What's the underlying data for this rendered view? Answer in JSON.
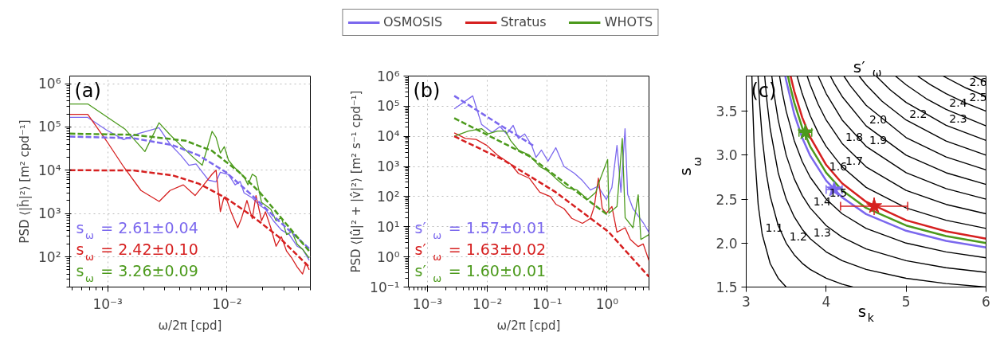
{
  "chart_data": [
    {
      "type": "line",
      "title": "(a)",
      "xlabel": "ω/2π [cpd]",
      "ylabel": "PSD ⟨|ĥ|²⟩ [m² cpd⁻¹]",
      "log": "xy",
      "grid": true,
      "xlim": [
        0.00048,
        0.05
      ],
      "ylim": [
        20,
        1500000
      ],
      "xticks": [
        {
          "value": 0.001,
          "label": "10⁻³"
        },
        {
          "value": 0.01,
          "label": "10⁻²"
        }
      ],
      "yticks": [
        {
          "value": 100,
          "label": "10²"
        },
        {
          "value": 1000,
          "label": "10³"
        },
        {
          "value": 10000,
          "label": "10⁴"
        },
        {
          "value": 100000,
          "label": "10⁵"
        },
        {
          "value": 1000000,
          "label": "10⁶"
        }
      ],
      "annotations": [
        "s$_{ω}$ = 2.61±0.04",
        "s$_{ω}$ = 2.42±0.10",
        "s$_{ω}$ = 3.26±0.09"
      ],
      "series": [
        {
          "color": "#7b68ee",
          "x": [
            0.00048,
            0.00068,
            0.000975,
            0.00136,
            0.0018,
            0.00269,
            0.00333,
            0.0041,
            0.0048,
            0.0055,
            0.0063,
            0.007,
            0.0081,
            0.0088,
            0.0103,
            0.0117,
            0.0129,
            0.0139,
            0.0163,
            0.0185,
            0.021,
            0.0245,
            0.0286,
            0.0333,
            0.0388,
            0.043,
            0.0489
          ],
          "values": [
            166000,
            166000,
            85000,
            51000,
            70000,
            96000,
            40000,
            22000,
            13000,
            14000,
            8600,
            5900,
            5400,
            9000,
            8000,
            4600,
            5500,
            3000,
            2300,
            1600,
            1260,
            680,
            415,
            325,
            175,
            150,
            83
          ]
        },
        {
          "color": "#d62020",
          "x": [
            0.00048,
            0.00068,
            0.000975,
            0.00136,
            0.0019,
            0.0027,
            0.00333,
            0.0043,
            0.0054,
            0.0065,
            0.0075,
            0.0081,
            0.0088,
            0.0094,
            0.01,
            0.0108,
            0.0123,
            0.0132,
            0.0147,
            0.0163,
            0.0175,
            0.0195,
            0.021,
            0.0233,
            0.0258,
            0.0286,
            0.0316,
            0.035,
            0.0388,
            0.043,
            0.046,
            0.0489
          ],
          "values": [
            195000,
            195000,
            48000,
            12000,
            3400,
            1900,
            3400,
            4600,
            2600,
            4900,
            8100,
            10000,
            1100,
            2300,
            2000,
            1100,
            470,
            760,
            2000,
            760,
            2600,
            680,
            1100,
            470,
            175,
            290,
            135,
            93,
            58,
            40,
            72,
            50
          ]
        },
        {
          "color": "#4c9a1c",
          "x": [
            0.00048,
            0.00068,
            0.00139,
            0.00205,
            0.00269,
            0.00333,
            0.0043,
            0.0053,
            0.0062,
            0.0075,
            0.0081,
            0.0088,
            0.0095,
            0.0103,
            0.0114,
            0.0139,
            0.015,
            0.0163,
            0.0175,
            0.0195,
            0.0233,
            0.0258,
            0.0286,
            0.0316,
            0.035,
            0.0388,
            0.043,
            0.0489
          ],
          "values": [
            340000,
            340000,
            90000,
            27000,
            125000,
            66000,
            33000,
            19000,
            13000,
            79000,
            57000,
            25000,
            35000,
            17000,
            12000,
            7100,
            4600,
            8100,
            7100,
            1800,
            1260,
            680,
            800,
            325,
            380,
            195,
            150,
            93
          ]
        },
        {
          "color": "#7b68ee",
          "line_style": "dashed",
          "x": [
            0.00048,
            0.00163,
            0.0035,
            0.0058,
            0.00975,
            0.0163,
            0.0271,
            0.0489
          ],
          "values": [
            60000,
            55000,
            38000,
            22000,
            9100,
            2600,
            680,
            155
          ]
        },
        {
          "color": "#d62020",
          "line_style": "dashed",
          "x": [
            0.00048,
            0.00163,
            0.0035,
            0.0058,
            0.00975,
            0.0163,
            0.0271,
            0.0489
          ],
          "values": [
            10000,
            9900,
            7600,
            4900,
            2300,
            870,
            290,
            58
          ]
        },
        {
          "color": "#4c9a1c",
          "line_style": "dashed",
          "x": [
            0.00048,
            0.00163,
            0.0045,
            0.0075,
            0.0126,
            0.019,
            0.0286,
            0.0489
          ],
          "values": [
            70000,
            66000,
            48000,
            28000,
            9100,
            3000,
            780,
            135
          ]
        }
      ]
    },
    {
      "type": "line",
      "title": "(b)",
      "xlabel": "ω/2π [cpd]",
      "ylabel": "PSD ⟨|û|² + |v̂|²⟩ [m² s⁻¹ cpd⁻¹]",
      "log": "xy",
      "grid": true,
      "legend": "top",
      "xlim": [
        0.00048,
        5
      ],
      "ylim": [
        0.1,
        1000000
      ],
      "xticks": [
        {
          "value": 0.001,
          "label": "10⁻³"
        },
        {
          "value": 0.01,
          "label": "10⁻²"
        },
        {
          "value": 0.1,
          "label": "10⁻¹"
        },
        {
          "value": 1,
          "label": "10⁰"
        }
      ],
      "yticks": [
        {
          "value": 0.1,
          "label": "10⁻¹"
        },
        {
          "value": 1,
          "label": "10⁰"
        },
        {
          "value": 10,
          "label": "10¹"
        },
        {
          "value": 100,
          "label": "10²"
        },
        {
          "value": 1000,
          "label": "10³"
        },
        {
          "value": 10000,
          "label": "10⁴"
        },
        {
          "value": 100000,
          "label": "10⁵"
        },
        {
          "value": 1000000,
          "label": "10⁶"
        }
      ],
      "annotations": [
        "s′$_{ω}$ = 1.57±0.01",
        "s′$_{ω}$ = 1.63±0.02",
        "s′$_{ω}$ = 1.60±0.01"
      ],
      "series": [
        {
          "name": "OSMOSIS",
          "color": "#7b68ee",
          "x": [
            0.0028,
            0.0057,
            0.008,
            0.012,
            0.0163,
            0.021,
            0.027,
            0.033,
            0.042,
            0.055,
            0.065,
            0.08,
            0.103,
            0.139,
            0.19,
            0.285,
            0.387,
            0.526,
            0.7,
            0.97,
            1.2,
            1.46,
            1.7,
            1.99,
            2.2,
            2.7,
            3.3,
            4.06,
            4.98
          ],
          "values": [
            81000,
            220000,
            25000,
            13500,
            21000,
            12000,
            23000,
            8500,
            12000,
            5000,
            2000,
            3500,
            1500,
            4200,
            1000,
            590,
            340,
            165,
            220,
            81,
            200,
            5000,
            140,
            18000,
            120,
            40,
            23,
            13,
            6.6
          ]
        },
        {
          "name": "Stratus",
          "color": "#d62020",
          "x": [
            0.0028,
            0.0043,
            0.0065,
            0.0098,
            0.0147,
            0.0245,
            0.033,
            0.05,
            0.075,
            0.113,
            0.139,
            0.19,
            0.257,
            0.387,
            0.526,
            0.61,
            0.714,
            0.83,
            0.97,
            1.2,
            1.46,
            2.0,
            2.44,
            3.3,
            4.0,
            4.98
          ],
          "values": [
            13000,
            8500,
            7900,
            5000,
            2400,
            1200,
            590,
            410,
            140,
            100,
            56,
            40,
            19,
            13,
            19,
            47,
            410,
            40,
            28,
            47,
            6.6,
            9.3,
            3.8,
            2.2,
            2.7,
            0.76
          ]
        },
        {
          "name": "WHOTS",
          "color": "#4c9a1c",
          "x": [
            0.0028,
            0.0048,
            0.008,
            0.0103,
            0.0147,
            0.02,
            0.0245,
            0.033,
            0.05,
            0.075,
            0.103,
            0.139,
            0.21,
            0.316,
            0.474,
            0.646,
            0.75,
            1.02,
            1.07,
            1.46,
            1.79,
            2.0,
            2.7,
            3.3,
            3.66,
            4.98
          ],
          "values": [
            10000,
            15000,
            18000,
            12000,
            15000,
            15000,
            7200,
            3500,
            2400,
            1000,
            700,
            400,
            200,
            165,
            81,
            140,
            340,
            1700,
            28,
            47,
            8500,
            20,
            9.3,
            115,
            3.8,
            5.5
          ]
        },
        {
          "color": "#7b68ee",
          "line_style": "dashed",
          "x": [
            0.0028,
            0.018,
            0.062
          ],
          "values": [
            220000,
            21000,
            4600
          ]
        },
        {
          "color": "#d62020",
          "line_style": "dashed",
          "x": [
            0.0028,
            0.018,
            0.139,
            1.07,
            4.98
          ],
          "values": [
            10000,
            1700,
            140,
            6.6,
            0.22
          ]
        },
        {
          "color": "#4c9a1c",
          "line_style": "dashed",
          "x": [
            0.0028,
            0.05,
            1.07
          ],
          "values": [
            40000,
            2200,
            23
          ]
        }
      ]
    },
    {
      "type": "line",
      "title": "(c)",
      "subtitle": "s′$_{ω}$",
      "xlabel": "s$_{k}$",
      "ylabel": "s$_{ω}$",
      "xlim": [
        3,
        6
      ],
      "ylim": [
        1.5,
        3.9
      ],
      "xticks": [
        3,
        4,
        5,
        6
      ],
      "yticks": [
        1.5,
        {
          "value": 2,
          "label": "2.0"
        },
        2.5,
        {
          "value": 3,
          "label": "3.0"
        },
        3.5
      ],
      "series": [
        {
          "name": "1.1",
          "color": "#000000",
          "x": [
            3.071,
            3.08,
            3.1,
            3.15,
            3.2,
            3.3,
            3.4,
            3.5
          ],
          "values": [
            3.9,
            3.6,
            3.1,
            2.433,
            2.1,
            1.767,
            1.6,
            1.5
          ]
        },
        {
          "name": "1.2",
          "color": "#000000",
          "x": [
            3.148,
            3.17,
            3.2,
            3.25,
            3.3,
            3.4,
            3.5,
            3.6,
            3.7,
            3.8,
            4.0,
            4.2,
            4.333
          ],
          "values": [
            3.9,
            3.553,
            3.2,
            2.8,
            2.533,
            2.2,
            2.0,
            1.867,
            1.771,
            1.7,
            1.6,
            1.533,
            1.5
          ]
        },
        {
          "name": "1.3",
          "color": "#000000",
          "x": [
            3.231,
            3.26,
            3.3,
            3.4,
            3.5,
            3.6,
            3.7,
            3.8,
            4.0,
            4.2,
            4.5,
            5,
            5.5,
            6
          ],
          "values": [
            3.9,
            3.608,
            3.3,
            2.8,
            2.5,
            2.3,
            2.157,
            2.05,
            1.9,
            1.8,
            1.7,
            1.6,
            1.54,
            1.5
          ]
        },
        {
          "name": "1.4",
          "color": "#000000",
          "x": [
            3.32,
            3.35,
            3.4,
            3.5,
            3.6,
            3.7,
            3.8,
            4.0,
            4.2,
            4.5,
            5,
            5.5,
            6
          ],
          "values": [
            3.9,
            3.686,
            3.4,
            3.0,
            2.733,
            2.543,
            2.4,
            2.2,
            2.067,
            1.933,
            1.8,
            1.72,
            1.667
          ]
        },
        {
          "name": "1.5",
          "color": "#000000",
          "x": [
            3.417,
            3.45,
            3.5,
            3.6,
            3.7,
            3.8,
            4.0,
            4.2,
            4.5,
            5,
            5.5,
            6
          ],
          "values": [
            3.9,
            3.722,
            3.5,
            3.167,
            2.929,
            2.75,
            2.5,
            2.333,
            2.167,
            2.0,
            1.9,
            1.833
          ]
        },
        {
          "name": "1.6",
          "color": "#4c9a1c",
          "x": [
            3.522,
            3.55,
            3.6,
            3.7,
            3.8,
            4.0,
            4.2,
            4.5,
            5,
            5.5,
            6
          ],
          "values": [
            3.9,
            3.782,
            3.6,
            3.314,
            3.1,
            2.8,
            2.6,
            2.4,
            2.2,
            2.08,
            2.0
          ]
        },
        {
          "name": "1.7",
          "color": "#000000",
          "x": [
            3.636,
            3.7,
            3.8,
            3.9,
            4.0,
            4.2,
            4.5,
            5,
            5.5,
            6
          ],
          "values": [
            3.9,
            3.7,
            3.45,
            3.256,
            3.1,
            2.867,
            2.633,
            2.4,
            2.26,
            2.167
          ]
        },
        {
          "name": "1.8",
          "color": "#000000",
          "x": [
            3.762,
            3.8,
            3.9,
            4.0,
            4.2,
            4.5,
            5,
            5.5,
            6
          ],
          "values": [
            3.9,
            3.8,
            3.578,
            3.4,
            3.133,
            2.867,
            2.6,
            2.44,
            2.333
          ]
        },
        {
          "name": "1.9",
          "color": "#000000",
          "x": [
            3.9,
            4.0,
            4.2,
            4.5,
            5,
            5.5,
            6
          ],
          "values": [
            3.9,
            3.7,
            3.4,
            3.1,
            2.8,
            2.62,
            2.5
          ]
        },
        {
          "name": "2.0",
          "color": "#000000",
          "x": [
            4.053,
            4.1,
            4.2,
            4.5,
            5,
            5.5,
            6
          ],
          "values": [
            3.9,
            3.818,
            3.667,
            3.333,
            3.0,
            2.8,
            2.667
          ]
        },
        {
          "color": "#000000",
          "x": [
            4.222,
            4.3,
            4.5,
            5,
            5.5,
            6
          ],
          "values": [
            3.9,
            3.792,
            3.567,
            3.2,
            2.98,
            2.833
          ]
        },
        {
          "name": "2.2",
          "color": "#000000",
          "x": [
            4.412,
            4.5,
            4.7,
            5,
            5.5,
            6
          ],
          "values": [
            3.9,
            3.8,
            3.612,
            3.4,
            3.16,
            3.0
          ]
        },
        {
          "name": "2.3",
          "color": "#000000",
          "x": [
            4.625,
            4.8,
            5,
            5.5,
            6
          ],
          "values": [
            3.9,
            3.744,
            3.6,
            3.34,
            3.167
          ]
        },
        {
          "name": "2.4",
          "color": "#000000",
          "x": [
            4.867,
            5,
            5.25,
            5.5,
            6
          ],
          "values": [
            3.9,
            3.8,
            3.644,
            3.52,
            3.333
          ]
        },
        {
          "name": "2.5",
          "color": "#000000",
          "x": [
            5.143,
            5.3,
            5.5,
            5.75,
            6
          ],
          "values": [
            3.9,
            3.804,
            3.7,
            3.591,
            3.5
          ]
        },
        {
          "name": "2.6",
          "color": "#000000",
          "x": [
            5.462,
            5.75,
            6
          ],
          "values": [
            3.9,
            3.764,
            3.667
          ]
        },
        {
          "color": "#000000",
          "x": [
            5.833,
            6
          ],
          "values": [
            3.9,
            3.833
          ]
        },
        {
          "color": "#7b68ee",
          "x": [
            3.489,
            3.5,
            3.6,
            3.7,
            3.8,
            4.0,
            4.2,
            4.5,
            5,
            5.5,
            6
          ],
          "values": [
            3.9,
            3.85,
            3.47,
            3.199,
            2.995,
            2.71,
            2.52,
            2.33,
            2.14,
            2.026,
            1.95
          ]
        },
        {
          "color": "#d62020",
          "x": [
            3.555,
            3.6,
            3.7,
            3.8,
            4.0,
            4.2,
            4.5,
            5,
            5.5,
            6
          ],
          "values": [
            3.9,
            3.73,
            3.43,
            3.205,
            2.89,
            2.68,
            2.47,
            2.26,
            2.134,
            2.05
          ]
        },
        {
          "type": "scatter",
          "marker": "star",
          "color": "#7b68ee",
          "x": [
            4.1
          ],
          "values": [
            2.61
          ],
          "errors": [
            0.04
          ],
          "xerrors": [
            0.1
          ]
        },
        {
          "type": "scatter",
          "marker": "star",
          "color": "#d62020",
          "x": [
            4.6
          ],
          "values": [
            2.42
          ],
          "errors": [
            0.1
          ],
          "xerrors": [
            0.42
          ]
        },
        {
          "type": "scatter",
          "marker": "star",
          "color": "#4c9a1c",
          "x": [
            3.74
          ],
          "values": [
            3.26
          ],
          "errors": [
            0.09
          ],
          "xerrors": [
            0.08
          ]
        }
      ]
    }
  ]
}
